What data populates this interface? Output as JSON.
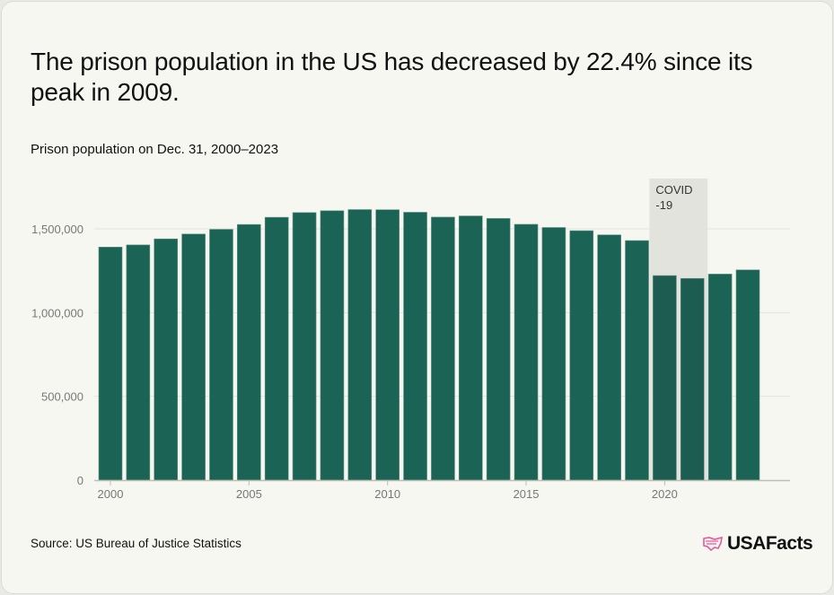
{
  "title": "The prison population in the US has decreased by 22.4% since its peak in 2009.",
  "subtitle": "Prison population on Dec. 31, 2000–2023",
  "source": "Source: US Bureau of Justice Statistics",
  "logo": {
    "text": "USAFacts",
    "icon": "us-map-flag-icon"
  },
  "colors": {
    "bar": "#1b6455",
    "bar_highlighted": "#1d5c50",
    "highlight_band": "#e3e3de",
    "logo_accent": "#e8579b",
    "background": "#f7f7f2"
  },
  "chart_data": {
    "type": "bar",
    "categories": [
      "2000",
      "2001",
      "2002",
      "2003",
      "2004",
      "2005",
      "2006",
      "2007",
      "2008",
      "2009",
      "2010",
      "2011",
      "2012",
      "2013",
      "2014",
      "2015",
      "2016",
      "2017",
      "2018",
      "2019",
      "2020",
      "2021",
      "2022",
      "2023"
    ],
    "values": [
      1391000,
      1404000,
      1440000,
      1469000,
      1497000,
      1526000,
      1569000,
      1597000,
      1608000,
      1615000,
      1614000,
      1599000,
      1570000,
      1577000,
      1562000,
      1527000,
      1508000,
      1489000,
      1464000,
      1430000,
      1221000,
      1204000,
      1230000,
      1255000
    ],
    "ylim": [
      0,
      1750000
    ],
    "yticks": [
      0,
      500000,
      1000000,
      1500000
    ],
    "ytick_labels": [
      "0",
      "500,000",
      "1,000,000",
      "1,500,000"
    ],
    "xtick_labels": [
      "2000",
      "2005",
      "2010",
      "2015",
      "2020"
    ],
    "grid": "horizontal",
    "annotation": {
      "label_line1": "COVID",
      "label_line2": "-19",
      "range": [
        "2020",
        "2021"
      ]
    }
  }
}
